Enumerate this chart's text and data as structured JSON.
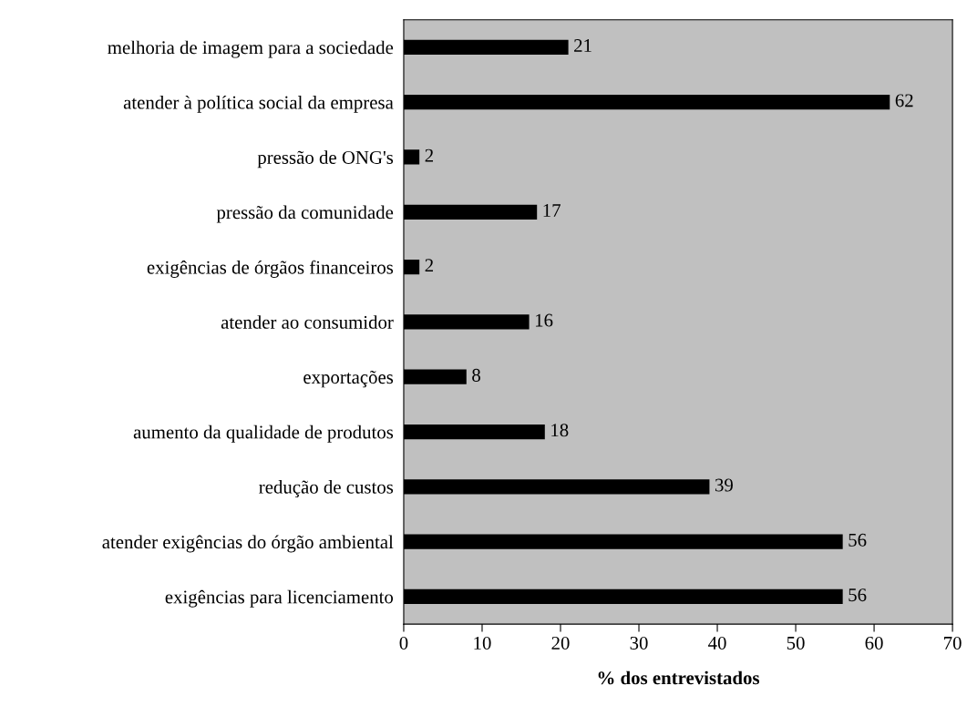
{
  "chart_data": {
    "type": "bar",
    "orientation": "horizontal",
    "xlabel": "% dos entrevistados",
    "categories": [
      "melhoria de imagem para a sociedade",
      "atender à política social da empresa",
      "pressão de ONG's",
      "pressão da comunidade",
      "exigências de órgãos financeiros",
      "atender ao consumidor",
      "exportações",
      "aumento da qualidade de produtos",
      "redução de custos",
      "atender exigências do órgão ambiental",
      "exigências para licenciamento"
    ],
    "values": [
      21,
      62,
      2,
      17,
      2,
      16,
      8,
      18,
      39,
      56,
      56
    ],
    "color": "#000000",
    "xlim": [
      0,
      70
    ],
    "xticks": [
      0,
      10,
      20,
      30,
      40,
      50,
      60,
      70
    ],
    "data_labels": true,
    "grid": false,
    "legend": false
  }
}
